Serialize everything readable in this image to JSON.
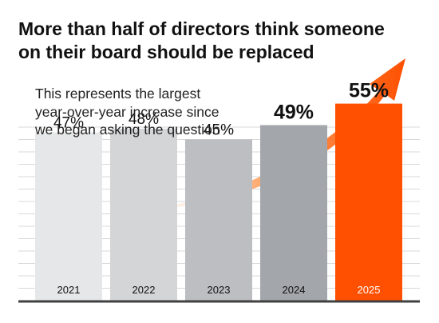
{
  "title_lines": [
    "More than half of directors think someone",
    "on their board should be replaced"
  ],
  "subtitle_lines": [
    "This represents the largest",
    "year-over-year increase since",
    "we began asking the question"
  ],
  "chart_data": {
    "type": "bar",
    "categories": [
      "2021",
      "2022",
      "2023",
      "2024",
      "2025"
    ],
    "values": [
      47,
      48,
      45,
      49,
      55
    ],
    "value_labels": [
      "47%",
      "48%",
      "45%",
      "49%",
      "55%"
    ],
    "bar_colors": [
      "#e6e7e8",
      "#d3d5d7",
      "#bcbec1",
      "#a3a6ab",
      "#fe5000"
    ],
    "emphasized": [
      false,
      false,
      false,
      true,
      true
    ],
    "arrow_color": "#fe5000",
    "grid": true,
    "ylim": [
      0,
      100
    ]
  }
}
